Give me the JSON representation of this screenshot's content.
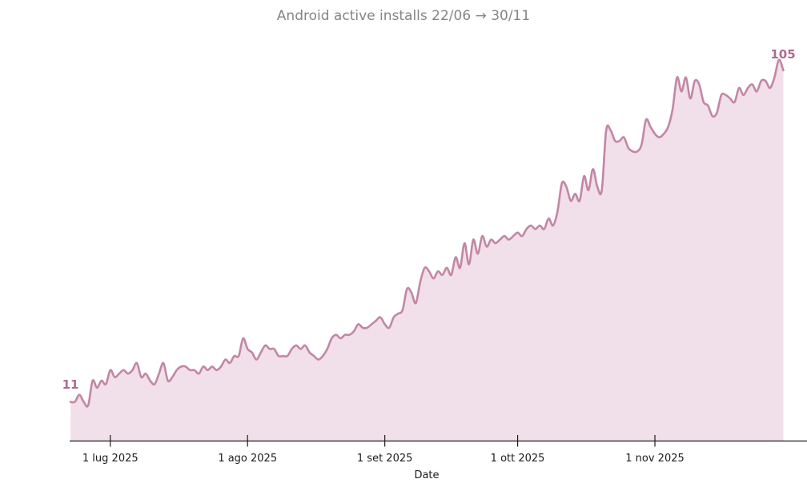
{
  "chart_data": {
    "type": "area",
    "title": "Android active installs 22/06 → 30/11",
    "xlabel": "Date",
    "ylabel": "",
    "start_label": "11",
    "end_label": "105",
    "dates": {
      "start": "2025-06-22",
      "end": "2025-11-30",
      "frequency": "daily"
    },
    "ticks": [
      {
        "label": "1 lug 2025",
        "day_index": 9
      },
      {
        "label": "1 ago 2025",
        "day_index": 40
      },
      {
        "label": "1 set 2025",
        "day_index": 71
      },
      {
        "label": "1 ott 2025",
        "day_index": 101
      },
      {
        "label": "1 nov 2025",
        "day_index": 132
      }
    ],
    "ylim": [
      0,
      113
    ],
    "grid": false,
    "legend": "none",
    "values": [
      11,
      11,
      13,
      11,
      10,
      17,
      15,
      17,
      16,
      20,
      18,
      19,
      20,
      19,
      20,
      22,
      18,
      19,
      17,
      16,
      19,
      22,
      17,
      18,
      20,
      21,
      21,
      20,
      20,
      19,
      21,
      20,
      21,
      20,
      21,
      23,
      22,
      24,
      24,
      29,
      26,
      25,
      23,
      25,
      27,
      26,
      26,
      24,
      24,
      24,
      26,
      27,
      26,
      27,
      25,
      24,
      23,
      24,
      26,
      29,
      30,
      29,
      30,
      30,
      31,
      33,
      32,
      32,
      33,
      34,
      35,
      33,
      32,
      35,
      36,
      37,
      43,
      42,
      39,
      45,
      49,
      48,
      46,
      48,
      47,
      49,
      47,
      52,
      49,
      56,
      50,
      57,
      53,
      58,
      55,
      57,
      56,
      57,
      58,
      57,
      58,
      59,
      58,
      60,
      61,
      60,
      61,
      60,
      63,
      61,
      65,
      73,
      72,
      68,
      70,
      68,
      75,
      71,
      77,
      72,
      71,
      88,
      88,
      85,
      85,
      86,
      83,
      82,
      82,
      84,
      91,
      89,
      87,
      86,
      87,
      89,
      94,
      103,
      99,
      103,
      97,
      102,
      101,
      96,
      95,
      92,
      93,
      98,
      98,
      97,
      96,
      100,
      98,
      100,
      101,
      99,
      102,
      102,
      100,
      103,
      108,
      105
    ]
  },
  "colors": {
    "line": "#c386a5",
    "fill": "#f1dfe9",
    "title": "#858585",
    "annotation": "#ad6b8e",
    "axis": "#1c1c1c"
  }
}
